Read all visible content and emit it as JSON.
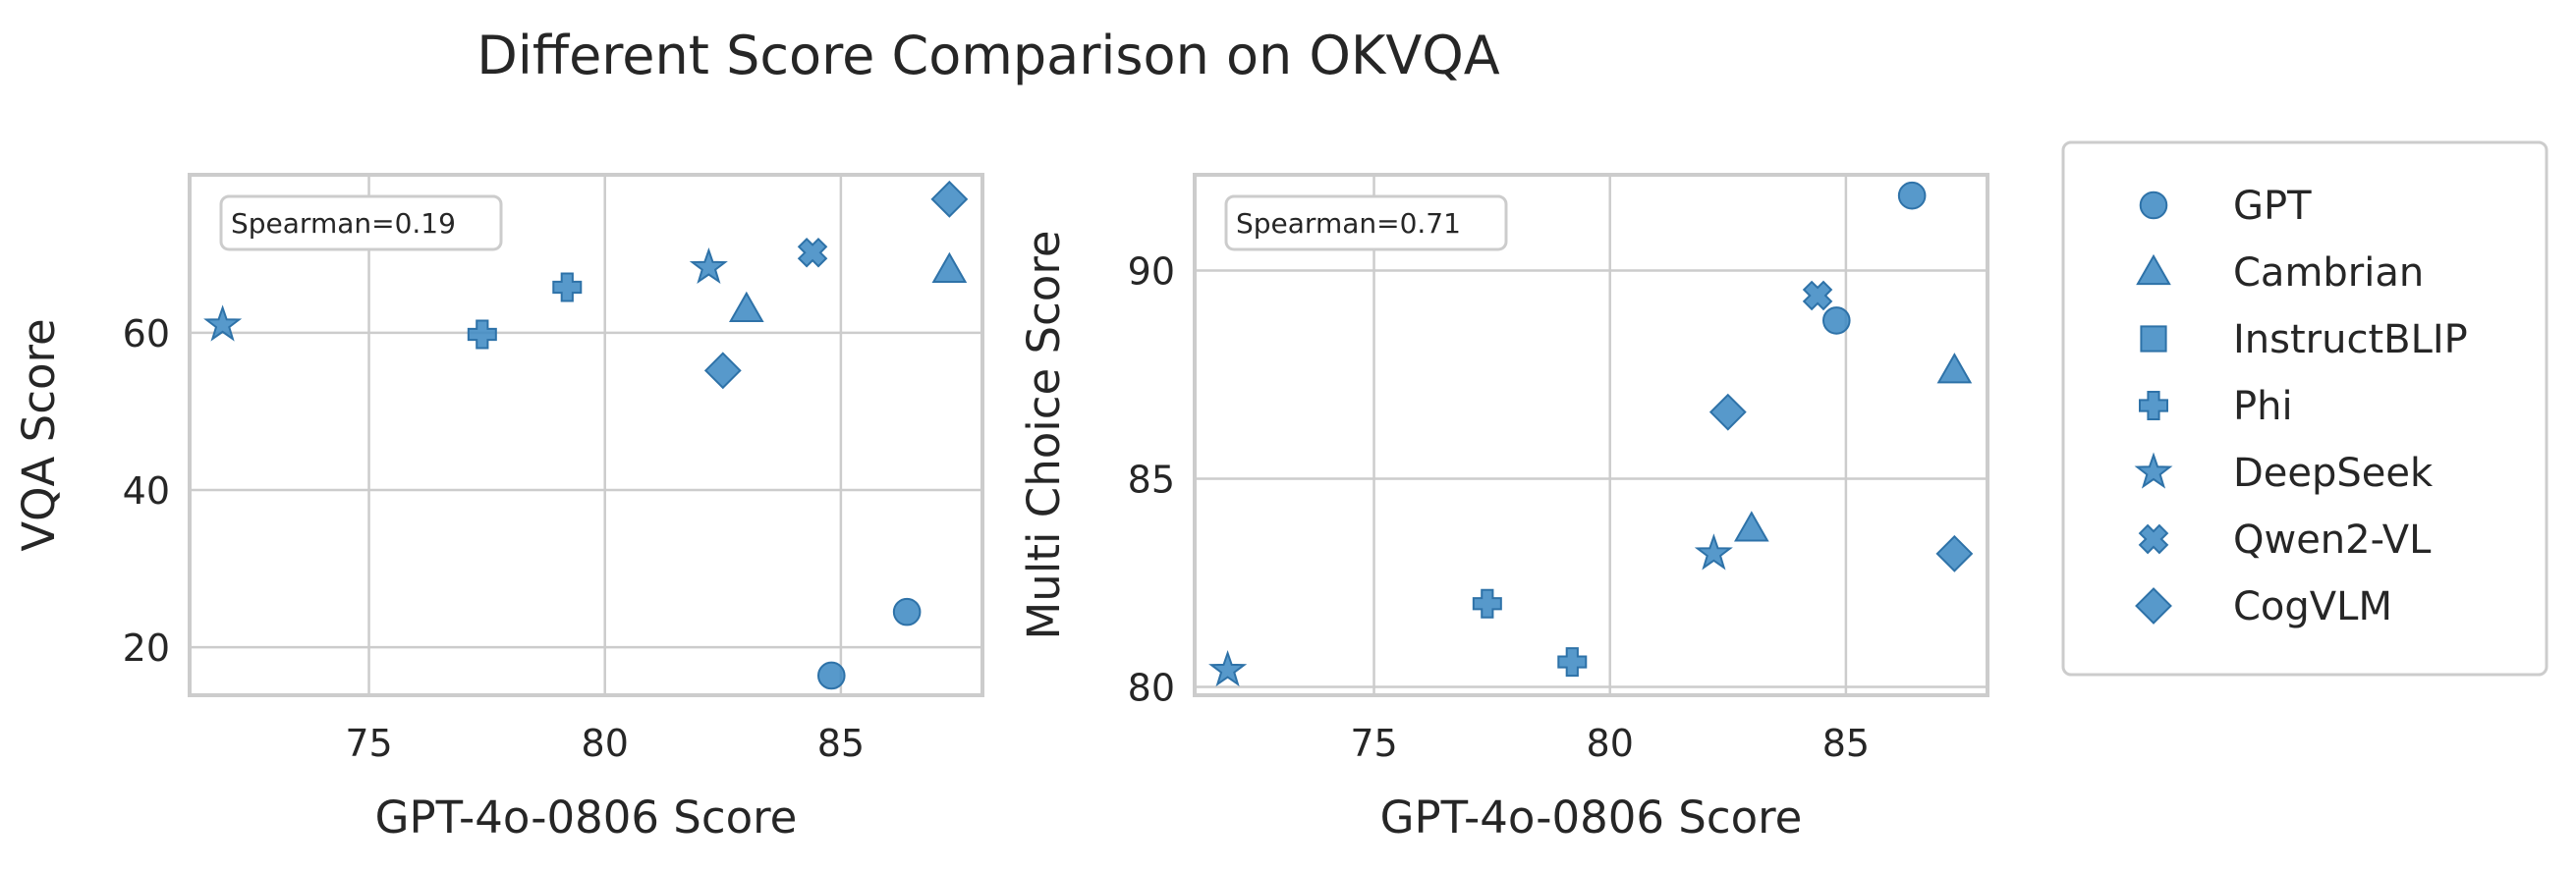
{
  "title": "Different Score Comparison on OKVQA",
  "colors": {
    "marker": "#3a87c2",
    "grid": "#cccccc",
    "text": "#262626"
  },
  "legend": [
    {
      "label": "GPT",
      "marker": "circle"
    },
    {
      "label": "Cambrian",
      "marker": "triangle"
    },
    {
      "label": "InstructBLIP",
      "marker": "square"
    },
    {
      "label": "Phi",
      "marker": "plus"
    },
    {
      "label": "DeepSeek",
      "marker": "star"
    },
    {
      "label": "Qwen2-VL",
      "marker": "x"
    },
    {
      "label": "CogVLM",
      "marker": "diamond"
    }
  ],
  "chart_data": [
    {
      "type": "scatter",
      "xlabel": "GPT-4o-0806 Score",
      "ylabel": "VQA Score",
      "xlim": [
        71.2,
        88.0
      ],
      "ylim": [
        13.9,
        80.1
      ],
      "xticks": [
        75,
        80,
        85
      ],
      "yticks": [
        20,
        40,
        60
      ],
      "annotation": "Spearman=0.19",
      "points": [
        {
          "model": "GPT",
          "x": 84.8,
          "y": 16.4
        },
        {
          "model": "GPT",
          "x": 86.4,
          "y": 24.5
        },
        {
          "model": "Cambrian",
          "x": 83.0,
          "y": 63.0
        },
        {
          "model": "Cambrian",
          "x": 87.3,
          "y": 68.0
        },
        {
          "model": "Phi",
          "x": 77.4,
          "y": 59.8
        },
        {
          "model": "Phi",
          "x": 79.2,
          "y": 65.8
        },
        {
          "model": "DeepSeek",
          "x": 71.9,
          "y": 61.0
        },
        {
          "model": "DeepSeek",
          "x": 82.2,
          "y": 68.3
        },
        {
          "model": "Qwen2-VL",
          "x": 84.4,
          "y": 70.2
        },
        {
          "model": "CogVLM",
          "x": 82.5,
          "y": 55.2
        },
        {
          "model": "CogVLM",
          "x": 87.3,
          "y": 77.0
        }
      ]
    },
    {
      "type": "scatter",
      "xlabel": "GPT-4o-0806 Score",
      "ylabel": "Multi Choice Score",
      "xlim": [
        71.2,
        88.0
      ],
      "ylim": [
        79.8,
        92.3
      ],
      "xticks": [
        75,
        80,
        85
      ],
      "yticks": [
        80,
        85,
        90
      ],
      "annotation": "Spearman=0.71",
      "points": [
        {
          "model": "GPT",
          "x": 86.4,
          "y": 91.8
        },
        {
          "model": "GPT",
          "x": 84.8,
          "y": 88.8
        },
        {
          "model": "Cambrian",
          "x": 87.3,
          "y": 87.6
        },
        {
          "model": "Cambrian",
          "x": 83.0,
          "y": 83.8
        },
        {
          "model": "Phi",
          "x": 77.4,
          "y": 82.0
        },
        {
          "model": "Phi",
          "x": 79.2,
          "y": 80.6
        },
        {
          "model": "DeepSeek",
          "x": 71.9,
          "y": 80.4
        },
        {
          "model": "DeepSeek",
          "x": 82.2,
          "y": 83.2
        },
        {
          "model": "Qwen2-VL",
          "x": 84.4,
          "y": 89.4
        },
        {
          "model": "CogVLM",
          "x": 82.5,
          "y": 86.6
        },
        {
          "model": "CogVLM",
          "x": 87.3,
          "y": 83.2
        }
      ]
    }
  ]
}
